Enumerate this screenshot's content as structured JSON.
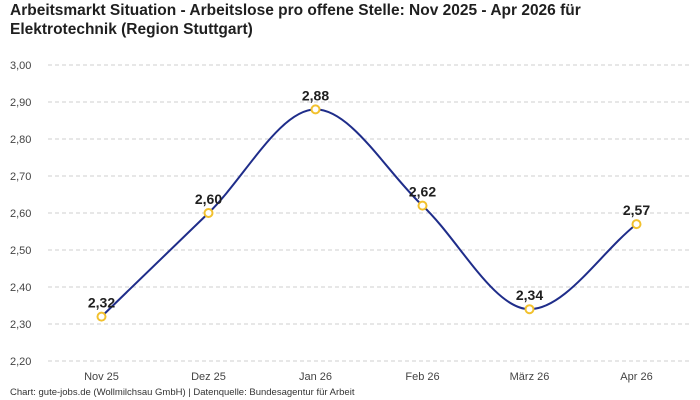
{
  "title": "Arbeitsmarkt Situation - Arbeitslose pro offene Stelle: Nov 2025 - Apr 2026 für Elektrotechnik (Region Stuttgart)",
  "footer": "Chart: gute-jobs.de (Wollmilchsau GmbH) | Datenquelle: Bundesagentur für Arbeit",
  "colors": {
    "line": "#1f2d8a",
    "marker_stroke": "#f2c12e",
    "marker_fill": "#ffffff",
    "grid": "#cfcfcf"
  },
  "chart_data": {
    "type": "line",
    "categories": [
      "Nov 25",
      "Dez 25",
      "Jan 26",
      "Feb 26",
      "März 26",
      "Apr 26"
    ],
    "series": [
      {
        "values": [
          2.32,
          2.6,
          2.88,
          2.62,
          2.34,
          2.57
        ]
      }
    ],
    "data_labels": [
      "2,32",
      "2,60",
      "2,88",
      "2,62",
      "2,34",
      "2,57"
    ],
    "ylim": [
      2.2,
      3.0
    ],
    "yticks": [
      "2,20",
      "2,30",
      "2,40",
      "2,50",
      "2,60",
      "2,70",
      "2,80",
      "2,90",
      "3,00"
    ],
    "grid": true,
    "smooth": true,
    "xlabel": "",
    "ylabel": ""
  }
}
